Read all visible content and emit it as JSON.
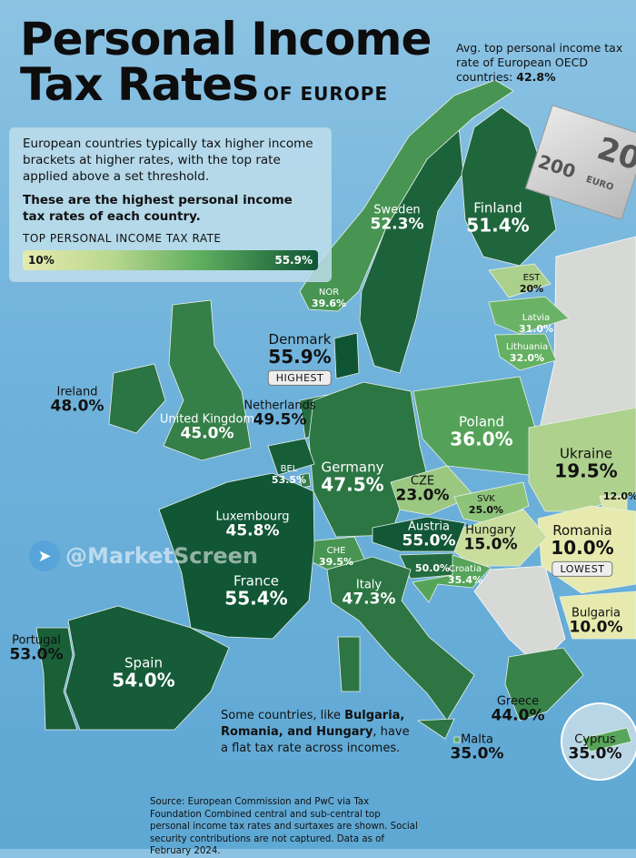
{
  "title": {
    "line1": "Personal Income",
    "line2": "Tax Rates",
    "suffix": "OF EUROPE"
  },
  "average_note": {
    "text": "Avg. top personal income tax rate of European OECD countries: ",
    "value": "42.8%"
  },
  "info_box": {
    "paragraph": "European countries typically tax higher income brackets at higher rates, with the top rate applied above a set threshold.",
    "bold": "These are the highest personal income tax rates of each country.",
    "legend_title": "TOP PERSONAL INCOME TAX RATE",
    "legend_min": "10%",
    "legend_max": "55.9%"
  },
  "colors": {
    "low": "#e6eaae",
    "mid": "#5fae5f",
    "high": "#0f5534",
    "no_data": "#d6d9d5",
    "water": "#6fb2db"
  },
  "countries": [
    {
      "id": "sweden",
      "name": "Sweden",
      "value": "52.3%",
      "rate": 52.3
    },
    {
      "id": "finland",
      "name": "Finland",
      "value": "51.4%",
      "rate": 51.4
    },
    {
      "id": "norway",
      "name": "NOR",
      "value": "39.6%",
      "rate": 39.6
    },
    {
      "id": "estonia",
      "name": "EST",
      "value": "20%",
      "rate": 20
    },
    {
      "id": "latvia",
      "name": "Latvia",
      "value": "31.0%",
      "rate": 31.0
    },
    {
      "id": "lithuania",
      "name": "Lithuania",
      "value": "32.0%",
      "rate": 32.0
    },
    {
      "id": "denmark",
      "name": "Denmark",
      "value": "55.9%",
      "rate": 55.9,
      "badge": "HIGHEST"
    },
    {
      "id": "ireland",
      "name": "Ireland",
      "value": "48.0%",
      "rate": 48.0
    },
    {
      "id": "uk",
      "name": "United Kingdom",
      "value": "45.0%",
      "rate": 45.0
    },
    {
      "id": "netherlands",
      "name": "Netherlands",
      "value": "49.5%",
      "rate": 49.5
    },
    {
      "id": "poland",
      "name": "Poland",
      "value": "36.0%",
      "rate": 36.0
    },
    {
      "id": "ukraine",
      "name": "Ukraine",
      "value": "19.5%",
      "rate": 19.5
    },
    {
      "id": "germany",
      "name": "Germany",
      "value": "47.5%",
      "rate": 47.5
    },
    {
      "id": "belgium",
      "name": "BEL",
      "value": "53.5%",
      "rate": 53.5
    },
    {
      "id": "czechia",
      "name": "CZE",
      "value": "23.0%",
      "rate": 23.0
    },
    {
      "id": "slovakia",
      "name": "SVK",
      "value": "25.0%",
      "rate": 25.0
    },
    {
      "id": "moldova",
      "name": "",
      "value": "12.0%",
      "rate": 12.0
    },
    {
      "id": "luxembourg",
      "name": "Luxembourg",
      "value": "45.8%",
      "rate": 45.8
    },
    {
      "id": "austria",
      "name": "Austria",
      "value": "55.0%",
      "rate": 55.0
    },
    {
      "id": "romania",
      "name": "Romania",
      "value": "10.0%",
      "rate": 10.0,
      "badge": "LOWEST"
    },
    {
      "id": "hungary",
      "name": "Hungary",
      "value": "15.0%",
      "rate": 15.0
    },
    {
      "id": "switzerland",
      "name": "CHE",
      "value": "39.5%",
      "rate": 39.5
    },
    {
      "id": "slovenia",
      "name": "",
      "value": "50.0%",
      "rate": 50.0
    },
    {
      "id": "croatia",
      "name": "Croatia",
      "value": "35.4%",
      "rate": 35.4
    },
    {
      "id": "france",
      "name": "France",
      "value": "55.4%",
      "rate": 55.4
    },
    {
      "id": "italy",
      "name": "Italy",
      "value": "47.3%",
      "rate": 47.3
    },
    {
      "id": "bulgaria",
      "name": "Bulgaria",
      "value": "10.0%",
      "rate": 10.0
    },
    {
      "id": "portugal",
      "name": "Portugal",
      "value": "53.0%",
      "rate": 53.0
    },
    {
      "id": "spain",
      "name": "Spain",
      "value": "54.0%",
      "rate": 54.0
    },
    {
      "id": "greece",
      "name": "Greece",
      "value": "44.0%",
      "rate": 44.0
    },
    {
      "id": "malta",
      "name": "Malta",
      "value": "35.0%",
      "rate": 35.0
    },
    {
      "id": "cyprus",
      "name": "Cyprus",
      "value": "35.0%",
      "rate": 35.0
    }
  ],
  "flat_note": {
    "pre": "Some countries, like ",
    "bold": "Bulgaria, Romania, and Hungary",
    "post": ", have a flat tax rate across incomes."
  },
  "source": "Source: European Commission and PwC via Tax Foundation Combined central and sub-central top personal income tax rates and surtaxes are shown. Social security contributions are not captured. Data as of February 2024.",
  "watermark": "@MarketScreen",
  "banknote": {
    "denomination": "200",
    "currency": "EURO"
  }
}
